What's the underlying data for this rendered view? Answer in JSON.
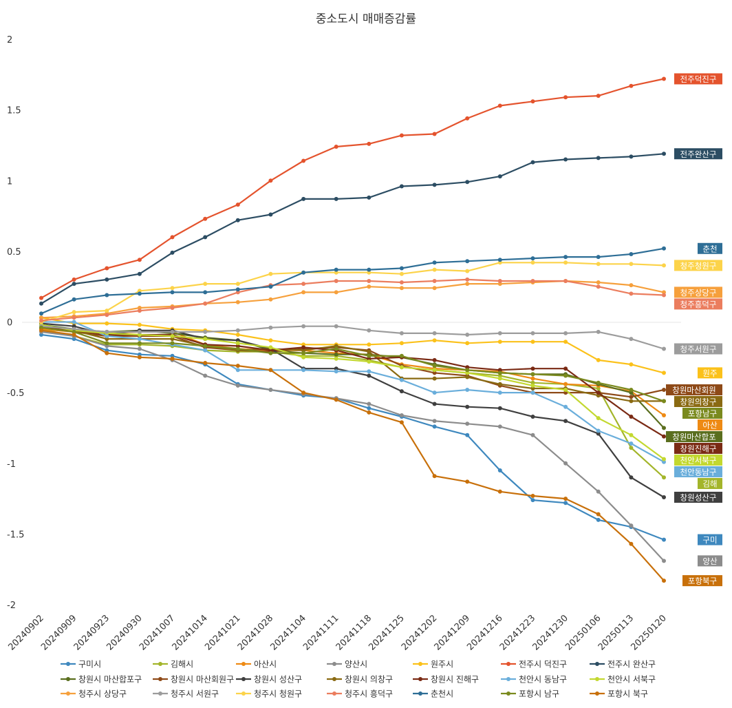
{
  "chart_data": {
    "type": "line",
    "title": "중소도시 매매증감률",
    "xlabel": "",
    "ylabel": "",
    "ylim": [
      -2,
      2
    ],
    "yticks": [
      "2",
      "1.5",
      "1",
      "0.5",
      "0",
      "-0.5",
      "-1",
      "-1.5",
      "-2"
    ],
    "grid": false,
    "legend_position": "bottom",
    "categories": [
      "20240902",
      "20240909",
      "20240923",
      "20240930",
      "20241007",
      "20241014",
      "20241021",
      "20241028",
      "20241104",
      "20241111",
      "20241118",
      "20241125",
      "20241202",
      "20241209",
      "20241216",
      "20241223",
      "20241230",
      "20250106",
      "20250113",
      "20250120"
    ],
    "series": [
      {
        "name": "구미시",
        "color": "#3E88BE",
        "end_label": "구미",
        "values": [
          -0.09,
          -0.12,
          -0.2,
          -0.23,
          -0.24,
          -0.3,
          -0.44,
          -0.48,
          -0.52,
          -0.54,
          -0.61,
          -0.67,
          -0.74,
          -0.8,
          -1.05,
          -1.26,
          -1.28,
          -1.4,
          -1.45,
          -1.54
        ]
      },
      {
        "name": "김해시",
        "color": "#A3B52A",
        "end_label": "김해",
        "values": [
          -0.05,
          -0.1,
          -0.16,
          -0.16,
          -0.17,
          -0.2,
          -0.21,
          -0.21,
          -0.24,
          -0.24,
          -0.27,
          -0.32,
          -0.34,
          -0.36,
          -0.38,
          -0.43,
          -0.44,
          -0.47,
          -0.89,
          -1.1
        ]
      },
      {
        "name": "아산시",
        "color": "#EE8A14",
        "end_label": "아산",
        "values": [
          -0.05,
          -0.07,
          -0.08,
          -0.07,
          -0.07,
          -0.16,
          -0.19,
          -0.2,
          -0.2,
          -0.22,
          -0.23,
          -0.3,
          -0.33,
          -0.34,
          -0.35,
          -0.4,
          -0.44,
          -0.45,
          -0.49,
          -0.66
        ]
      },
      {
        "name": "양산시",
        "color": "#8C8C8C",
        "end_label": "양산",
        "values": [
          -0.07,
          -0.1,
          -0.17,
          -0.19,
          -0.27,
          -0.38,
          -0.45,
          -0.48,
          -0.51,
          -0.54,
          -0.58,
          -0.66,
          -0.7,
          -0.72,
          -0.74,
          -0.8,
          -1.0,
          -1.2,
          -1.44,
          -1.69
        ]
      },
      {
        "name": "원주시",
        "color": "#FBC11A",
        "end_label": "원주",
        "values": [
          0.03,
          -0.01,
          -0.01,
          -0.02,
          -0.05,
          -0.06,
          -0.09,
          -0.13,
          -0.16,
          -0.16,
          -0.16,
          -0.15,
          -0.13,
          -0.15,
          -0.14,
          -0.14,
          -0.14,
          -0.27,
          -0.3,
          -0.36
        ]
      },
      {
        "name": "전주시 덕진구",
        "color": "#E4532D",
        "end_label": "전주덕진구",
        "values": [
          0.17,
          0.3,
          0.38,
          0.44,
          0.6,
          0.73,
          0.83,
          1.0,
          1.14,
          1.24,
          1.26,
          1.32,
          1.33,
          1.44,
          1.53,
          1.56,
          1.59,
          1.6,
          1.67,
          1.72
        ]
      },
      {
        "name": "전주시 완산구",
        "color": "#2C4D63",
        "end_label": "전주완산구",
        "values": [
          0.13,
          0.27,
          0.3,
          0.34,
          0.49,
          0.6,
          0.72,
          0.76,
          0.87,
          0.87,
          0.88,
          0.96,
          0.97,
          0.99,
          1.03,
          1.13,
          1.15,
          1.16,
          1.17,
          1.19
        ]
      },
      {
        "name": "창원시 마산합포구",
        "color": "#5A6E1E",
        "end_label": "창원마산합포",
        "values": [
          -0.02,
          -0.05,
          -0.07,
          -0.06,
          -0.08,
          -0.11,
          -0.13,
          -0.2,
          -0.22,
          -0.23,
          -0.23,
          -0.25,
          -0.3,
          -0.34,
          -0.36,
          -0.37,
          -0.37,
          -0.44,
          -0.5,
          -0.75
        ]
      },
      {
        "name": "창원시 마산회원구",
        "color": "#8E4A18",
        "end_label": "창원마산회원",
        "values": [
          -0.04,
          -0.07,
          -0.1,
          -0.1,
          -0.1,
          -0.18,
          -0.2,
          -0.21,
          -0.19,
          -0.18,
          -0.2,
          -0.31,
          -0.36,
          -0.38,
          -0.45,
          -0.5,
          -0.5,
          -0.5,
          -0.53,
          -0.48
        ]
      },
      {
        "name": "창원시 성산구",
        "color": "#3F3F3F",
        "end_label": "창원성산구",
        "values": [
          -0.01,
          -0.03,
          -0.09,
          -0.06,
          -0.06,
          -0.12,
          -0.13,
          -0.19,
          -0.33,
          -0.33,
          -0.38,
          -0.49,
          -0.58,
          -0.6,
          -0.61,
          -0.67,
          -0.7,
          -0.79,
          -1.1,
          -1.24
        ]
      },
      {
        "name": "창원시 의창구",
        "color": "#8A6A12",
        "end_label": "창원의창구",
        "values": [
          -0.03,
          -0.06,
          -0.12,
          -0.12,
          -0.12,
          -0.17,
          -0.2,
          -0.19,
          -0.2,
          -0.17,
          -0.21,
          -0.4,
          -0.4,
          -0.39,
          -0.44,
          -0.47,
          -0.47,
          -0.52,
          -0.56,
          -0.56
        ]
      },
      {
        "name": "창원시 진해구",
        "color": "#7A2A14",
        "end_label": "창원진해구",
        "values": [
          -0.04,
          -0.06,
          -0.09,
          -0.09,
          -0.09,
          -0.16,
          -0.17,
          -0.2,
          -0.18,
          -0.2,
          -0.26,
          -0.25,
          -0.27,
          -0.32,
          -0.34,
          -0.33,
          -0.33,
          -0.5,
          -0.67,
          -0.81
        ]
      },
      {
        "name": "천안시 동남구",
        "color": "#6AAEDB",
        "end_label": "천안동남구",
        "values": [
          0.0,
          0.0,
          -0.1,
          -0.12,
          -0.16,
          -0.2,
          -0.34,
          -0.34,
          -0.34,
          -0.35,
          -0.35,
          -0.41,
          -0.5,
          -0.48,
          -0.5,
          -0.5,
          -0.6,
          -0.77,
          -0.86,
          -0.99
        ]
      },
      {
        "name": "천안시 서북구",
        "color": "#C3D830",
        "end_label": "천안서북구",
        "values": [
          -0.02,
          -0.06,
          -0.08,
          -0.09,
          -0.1,
          -0.12,
          -0.15,
          -0.18,
          -0.25,
          -0.26,
          -0.28,
          -0.32,
          -0.34,
          -0.36,
          -0.4,
          -0.45,
          -0.48,
          -0.68,
          -0.8,
          -0.97
        ]
      },
      {
        "name": "청주시 상당구",
        "color": "#F6A03C",
        "end_label": "청주상당구",
        "values": [
          0.03,
          0.04,
          0.06,
          0.1,
          0.11,
          0.13,
          0.14,
          0.16,
          0.21,
          0.21,
          0.25,
          0.24,
          0.24,
          0.27,
          0.27,
          0.28,
          0.29,
          0.28,
          0.26,
          0.21
        ]
      },
      {
        "name": "청주시 서원구",
        "color": "#9C9C9C",
        "end_label": "청주서원구",
        "values": [
          -0.03,
          -0.05,
          -0.07,
          -0.07,
          -0.07,
          -0.07,
          -0.06,
          -0.04,
          -0.03,
          -0.03,
          -0.06,
          -0.08,
          -0.08,
          -0.09,
          -0.08,
          -0.08,
          -0.08,
          -0.07,
          -0.12,
          -0.19
        ]
      },
      {
        "name": "청주시 청원구",
        "color": "#FCD34A",
        "end_label": "청주청원구",
        "values": [
          0.0,
          0.07,
          0.08,
          0.22,
          0.24,
          0.27,
          0.27,
          0.34,
          0.35,
          0.35,
          0.35,
          0.34,
          0.37,
          0.36,
          0.42,
          0.42,
          0.42,
          0.41,
          0.41,
          0.4
        ]
      },
      {
        "name": "청주시 흥덕구",
        "color": "#EB7D5E",
        "end_label": "청주흥덕구",
        "values": [
          0.01,
          0.03,
          0.05,
          0.08,
          0.1,
          0.13,
          0.21,
          0.26,
          0.27,
          0.29,
          0.29,
          0.28,
          0.29,
          0.3,
          0.29,
          0.29,
          0.29,
          0.25,
          0.2,
          0.19
        ]
      },
      {
        "name": "춘천시",
        "color": "#2E6E96",
        "end_label": "춘천",
        "values": [
          0.06,
          0.16,
          0.19,
          0.2,
          0.21,
          0.21,
          0.23,
          0.25,
          0.35,
          0.37,
          0.37,
          0.38,
          0.42,
          0.43,
          0.44,
          0.45,
          0.46,
          0.46,
          0.48,
          0.52
        ]
      },
      {
        "name": "포항시 남구",
        "color": "#7A8A1E",
        "end_label": "포항남구",
        "values": [
          -0.04,
          -0.07,
          -0.15,
          -0.15,
          -0.15,
          -0.17,
          -0.19,
          -0.22,
          -0.22,
          -0.19,
          -0.24,
          -0.24,
          -0.31,
          -0.34,
          -0.36,
          -0.37,
          -0.38,
          -0.43,
          -0.48,
          -0.56
        ]
      },
      {
        "name": "포항시 북구",
        "color": "#C8700A",
        "end_label": "포항북구",
        "values": [
          -0.06,
          -0.09,
          -0.22,
          -0.25,
          -0.26,
          -0.29,
          -0.31,
          -0.34,
          -0.5,
          -0.55,
          -0.64,
          -0.71,
          -1.09,
          -1.13,
          -1.2,
          -1.23,
          -1.25,
          -1.36,
          -1.57,
          -1.83
        ]
      }
    ],
    "end_labels_order": [
      "전주덕진구",
      "전주완산구",
      "춘천",
      "청주청원구",
      "청주상당구",
      "청주흥덕구",
      "청주서원구",
      "원주",
      "창원마산회원",
      "창원의창구",
      "포항남구",
      "아산",
      "창원마산합포",
      "창원진해구",
      "천안서북구",
      "천안동남구",
      "김해",
      "창원성산구",
      "구미",
      "양산",
      "포항북구"
    ]
  }
}
